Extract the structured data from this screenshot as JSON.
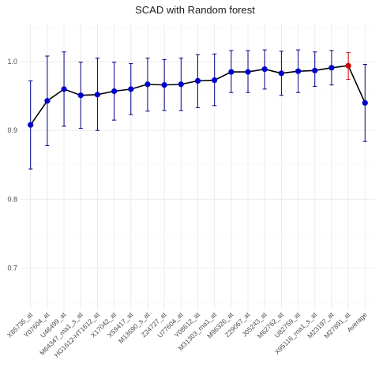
{
  "chart_data": {
    "type": "line",
    "title": "SCAD with Random forest",
    "xlabel": "",
    "ylabel": "",
    "ylim": [
      0.64,
      1.055
    ],
    "yticks": [
      0.7,
      0.8,
      0.9,
      1.0
    ],
    "ytick_labels": [
      "0.7",
      "0.8",
      "0.9",
      "1.0"
    ],
    "grid": true,
    "categories": [
      "X85735_at",
      "Y07604_at",
      "U46499_at",
      "M64347_ma1_s_at",
      "HG1612-HT1612_at",
      "X17042_at",
      "X59417_at",
      "M13690_s_at",
      "Z24727_at",
      "U77604_at",
      "Y08612_at",
      "M31303_rna1_at",
      "M96326_at",
      "Z29067_at",
      "J05243_at",
      "M62762_at",
      "U82759_at",
      "X95116_rna1_s_at",
      "M23197_at",
      "M27891_at",
      "Average"
    ],
    "series": [
      {
        "values": [
          0.908,
          0.943,
          0.96,
          0.951,
          0.952,
          0.957,
          0.96,
          0.967,
          0.966,
          0.967,
          0.972,
          0.973,
          0.985,
          0.985,
          0.989,
          0.983,
          0.986,
          0.987,
          0.991,
          0.994,
          0.94
        ],
        "lower": [
          0.844,
          0.878,
          0.906,
          0.903,
          0.9,
          0.915,
          0.923,
          0.928,
          0.929,
          0.929,
          0.933,
          0.936,
          0.955,
          0.955,
          0.96,
          0.951,
          0.955,
          0.964,
          0.966,
          0.974,
          0.884
        ],
        "upper": [
          0.972,
          1.008,
          1.014,
          0.999,
          1.005,
          0.999,
          0.997,
          1.005,
          1.003,
          1.005,
          1.01,
          1.011,
          1.016,
          1.016,
          1.017,
          1.015,
          1.017,
          1.014,
          1.016,
          1.013,
          0.996
        ]
      }
    ],
    "highlight_index": 19,
    "colors": {
      "point": "#0000cc",
      "errorbar": "#00008b",
      "highlight": "#cc0000",
      "line": "#000000",
      "grid": "#ebebeb",
      "grid_minor": "#f5f5f5"
    }
  }
}
